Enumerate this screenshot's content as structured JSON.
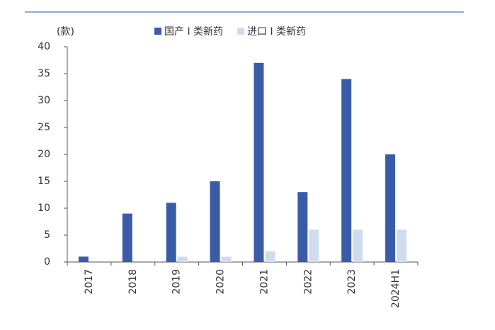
{
  "chart_data": {
    "type": "bar",
    "y_label": "(款)",
    "categories": [
      "2017",
      "2018",
      "2019",
      "2020",
      "2021",
      "2022",
      "2023",
      "2024H1"
    ],
    "series": [
      {
        "name": "国产 I 类新药",
        "color": "#3a5ba8",
        "values": [
          1,
          9,
          11,
          15,
          37,
          13,
          34,
          20
        ]
      },
      {
        "name": "进口 I 类新药",
        "color": "#cfdcf0",
        "values": [
          0,
          0,
          1,
          1,
          2,
          6,
          6,
          6
        ]
      }
    ],
    "ylim": [
      0,
      40
    ],
    "yticks": [
      0,
      5,
      10,
      15,
      20,
      25,
      30,
      35,
      40
    ],
    "grid": false,
    "legend": "top"
  }
}
